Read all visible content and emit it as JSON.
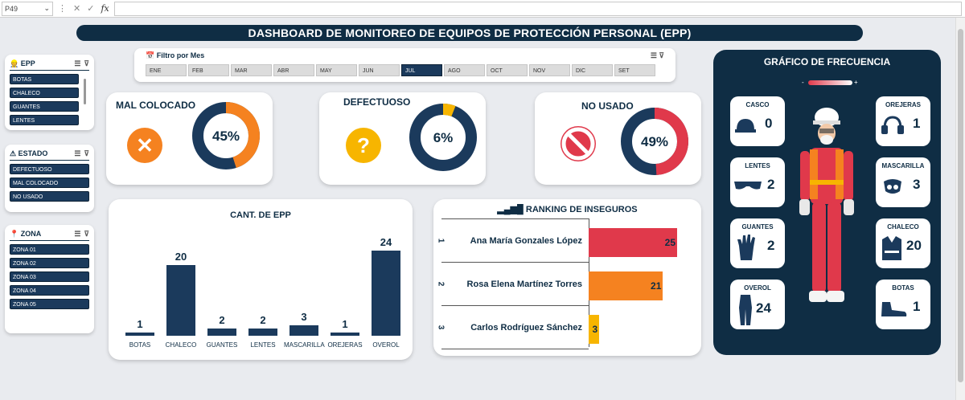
{
  "excel": {
    "name_box": "P49",
    "fx": "fx"
  },
  "title": "DASHBOARD DE MONITOREO DE EQUIPOS DE PROTECCIÓN PERSONAL (EPP)",
  "slicers": {
    "epp": {
      "title": "EPP",
      "items": [
        "BOTAS",
        "CHALECO",
        "GUANTES",
        "LENTES"
      ]
    },
    "estado": {
      "title": "ESTADO",
      "items": [
        "DEFECTUOSO",
        "MAL COLOCADO",
        "NO USADO"
      ]
    },
    "zona": {
      "title": "ZONA",
      "items": [
        "ZONA 01",
        "ZONA 02",
        "ZONA 03",
        "ZONA 04",
        "ZONA 05"
      ]
    }
  },
  "month_filter": {
    "title": "Filtro por Mes",
    "months": [
      "ENE",
      "FEB",
      "MAR",
      "ABR",
      "MAY",
      "JUN",
      "JUL",
      "AGO",
      "OCT",
      "NOV",
      "DIC",
      "SET"
    ],
    "active": "JUL"
  },
  "kpis": [
    {
      "label": "MAL COLOCADO",
      "value": "45%",
      "fraction": 0.45,
      "color": "#f58220",
      "icon": "x-icon",
      "glyph": "✕"
    },
    {
      "label": "DEFECTUOSO",
      "value": "6%",
      "fraction": 0.06,
      "color": "#f7b500",
      "icon": "question-icon",
      "glyph": "?"
    },
    {
      "label": "NO USADO",
      "value": "49%",
      "fraction": 0.49,
      "color": "#e0394b",
      "icon": "prohibited-icon",
      "glyph": ""
    }
  ],
  "chart_data": [
    {
      "type": "bar",
      "title": "CANT. DE EPP",
      "categories": [
        "BOTAS",
        "CHALECO",
        "GUANTES",
        "LENTES",
        "MASCARILLA",
        "OREJERAS",
        "OVEROL"
      ],
      "values": [
        1,
        20,
        2,
        2,
        3,
        1,
        24
      ],
      "ylim": [
        0,
        24
      ],
      "color": "#1b3a5c"
    },
    {
      "type": "bar",
      "title": "RANKING DE INSEGUROS",
      "categories": [
        "Ana María Gonzales López",
        "Rosa Elena Martínez Torres",
        "Carlos Rodríguez Sánchez"
      ],
      "ranks": [
        "1",
        "2",
        "3"
      ],
      "values": [
        25,
        21,
        3
      ],
      "colors": [
        "#e0394b",
        "#f58220",
        "#f7b500"
      ]
    }
  ],
  "frequency": {
    "title": "GRÁFICO DE FRECUENCIA",
    "legend_minus": "-",
    "legend_plus": "+",
    "items": [
      {
        "name": "CASCO",
        "value": "0",
        "icon": "helmet-icon"
      },
      {
        "name": "OREJERAS",
        "value": "1",
        "icon": "headphones-icon"
      },
      {
        "name": "LENTES",
        "value": "2",
        "icon": "goggles-icon"
      },
      {
        "name": "MASCARILLA",
        "value": "3",
        "icon": "mask-icon"
      },
      {
        "name": "GUANTES",
        "value": "2",
        "icon": "glove-icon"
      },
      {
        "name": "CHALECO",
        "value": "20",
        "icon": "vest-icon"
      },
      {
        "name": "OVEROL",
        "value": "24",
        "icon": "coverall-icon"
      },
      {
        "name": "BOTAS",
        "value": "1",
        "icon": "boot-icon"
      }
    ]
  }
}
